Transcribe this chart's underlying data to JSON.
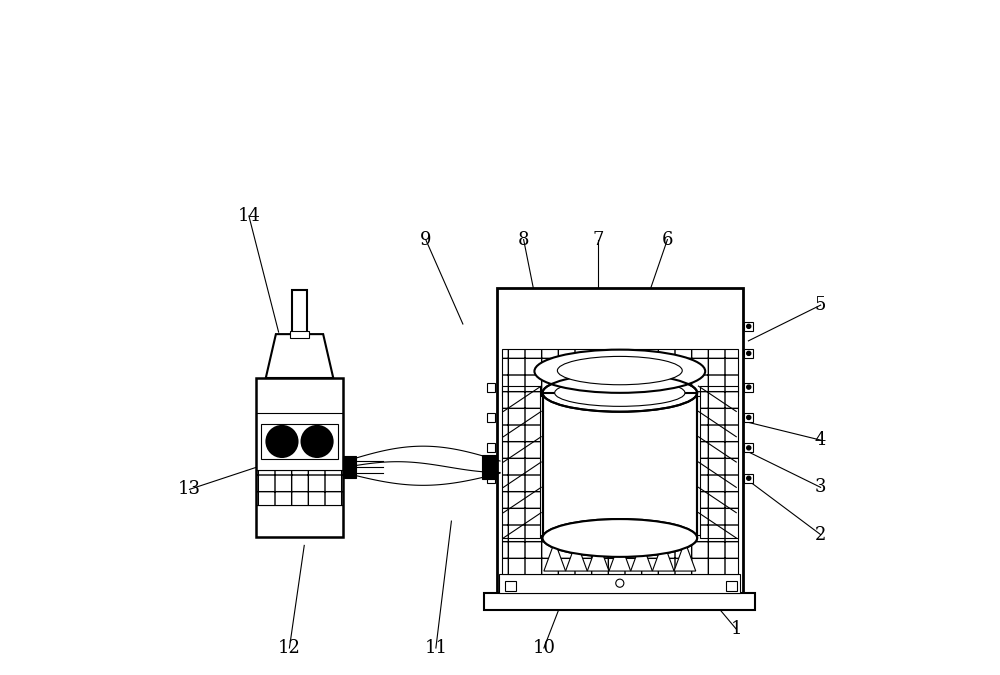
{
  "bg_color": "#ffffff",
  "line_color": "#000000",
  "label_color": "#000000",
  "lw": 1.5,
  "thin_lw": 0.8
}
